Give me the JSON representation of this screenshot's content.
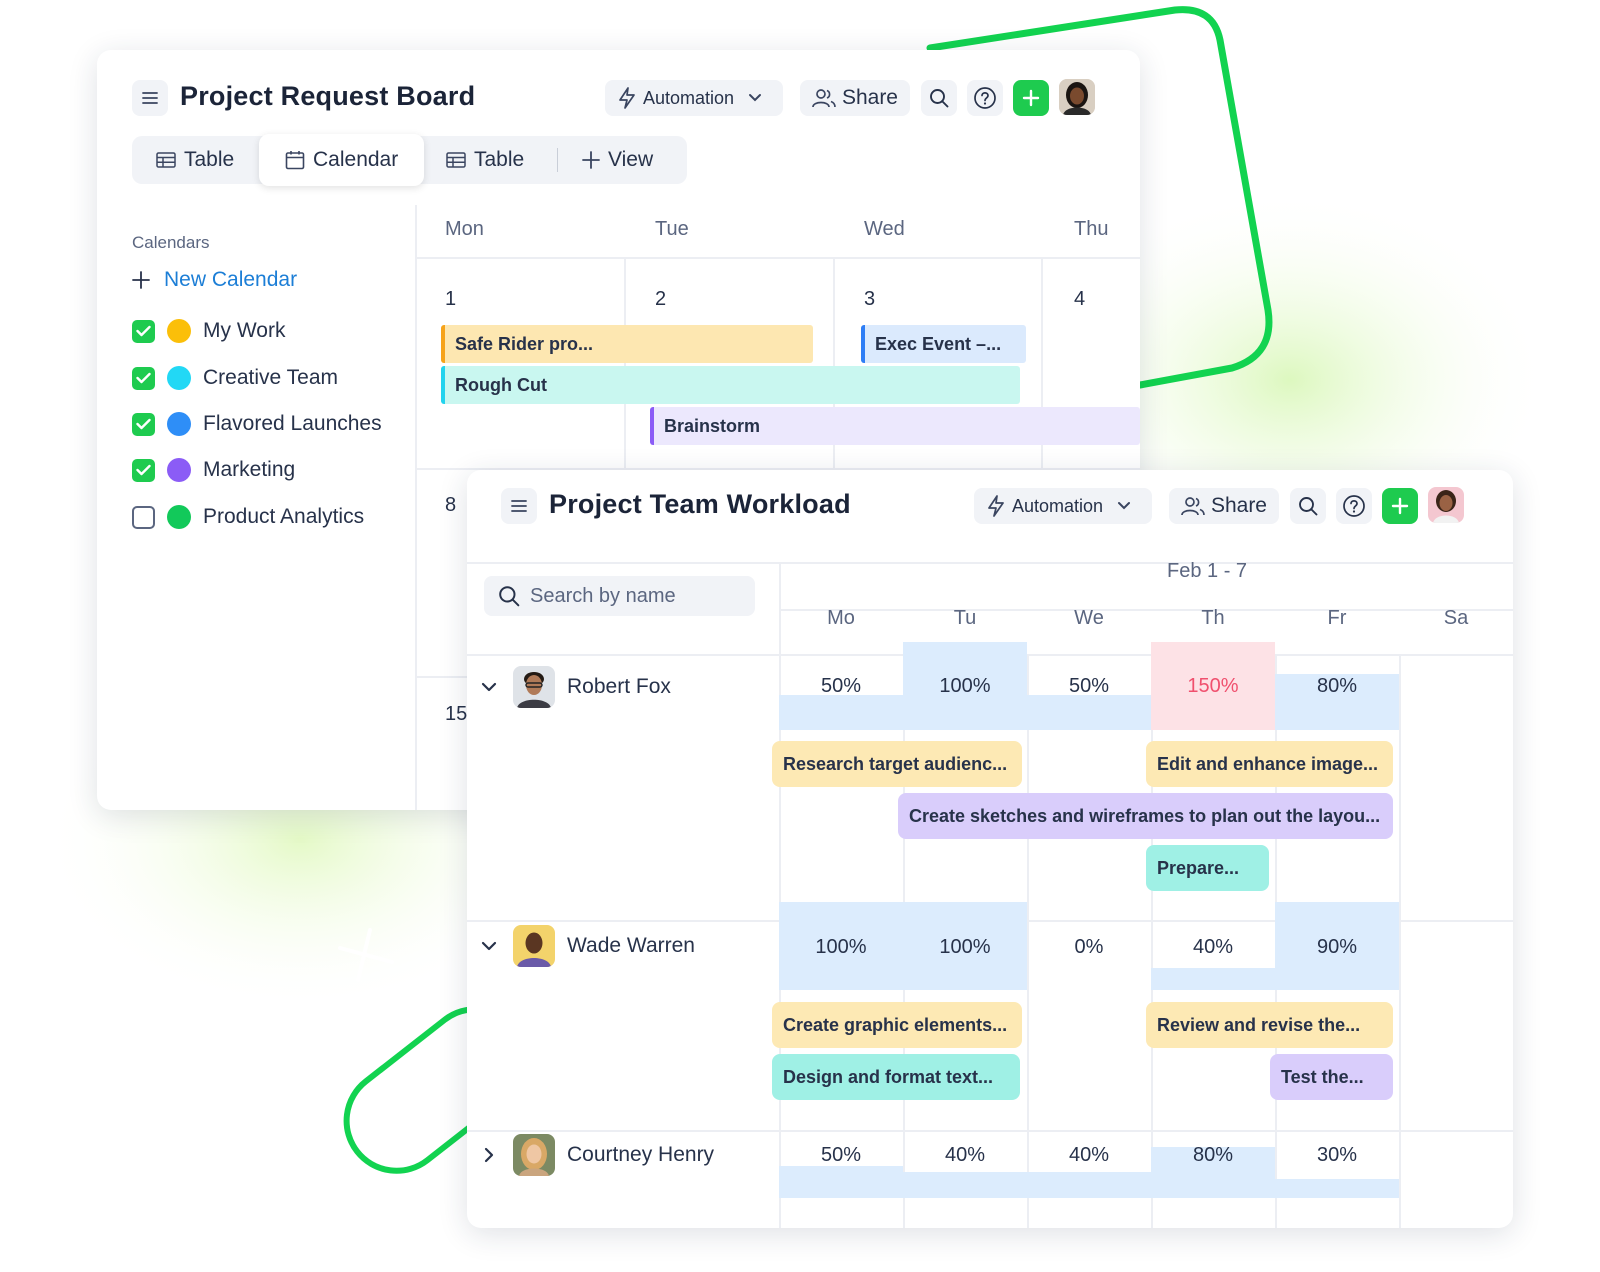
{
  "colors": {
    "accent_green": "#1ecb4f",
    "link_blue": "#1c7ed6",
    "overload_red": "#f0506e",
    "load_blue": "#dcecfd",
    "overload_pink": "#fde2e6"
  },
  "board": {
    "title": "Project Request Board",
    "automation_label": "Automation",
    "share_label": "Share",
    "tabs": [
      {
        "label": "Table",
        "icon": "table-icon"
      },
      {
        "label": "Calendar",
        "icon": "calendar-icon"
      },
      {
        "label": "Table",
        "icon": "table-icon"
      },
      {
        "label": "View",
        "icon": "plus-icon"
      }
    ],
    "sidebar": {
      "heading": "Calendars",
      "new_calendar": "New Calendar",
      "calendars": [
        {
          "label": "My Work",
          "checked": true,
          "color": "#fbbf09"
        },
        {
          "label": "Creative Team",
          "checked": true,
          "color": "#22d8f5"
        },
        {
          "label": "Flavored Launches",
          "checked": true,
          "color": "#2e8ef7"
        },
        {
          "label": "Marketing",
          "checked": true,
          "color": "#8b5cf6"
        },
        {
          "label": "Product Analytics",
          "checked": false,
          "color": "#12c95a"
        }
      ]
    },
    "weekdays": [
      "Mon",
      "Tue",
      "Wed",
      "Thu"
    ],
    "day_numbers": [
      "1",
      "2",
      "3",
      "4",
      "8",
      "15"
    ],
    "events": [
      {
        "label": "Safe Rider pro...",
        "color": "#fde7b1",
        "bar": "#f6a31a"
      },
      {
        "label": "Exec Event –...",
        "color": "#dbeafd",
        "bar": "#2e7ef5"
      },
      {
        "label": "Rough Cut",
        "color": "#c9f7f0",
        "bar": "#22d3ee"
      },
      {
        "label": "Brainstorm",
        "color": "#ece8fd",
        "bar": "#8b5cf6"
      }
    ]
  },
  "workload": {
    "title": "Project Team Workload",
    "automation_label": "Automation",
    "share_label": "Share",
    "search_placeholder": "Search by name",
    "date_range": "Feb 1 - 7",
    "weekdays": [
      "Mo",
      "Tu",
      "We",
      "Th",
      "Fr",
      "Sa"
    ],
    "people": [
      {
        "name": "Robert Fox",
        "expanded": true,
        "loads": [
          "50%",
          "100%",
          "50%",
          "150%",
          "80%"
        ],
        "load_values": [
          50,
          100,
          50,
          150,
          80
        ],
        "tasks": [
          {
            "label": "Research target audienc...",
            "color": "#fde9b4"
          },
          {
            "label": "Edit and enhance image...",
            "color": "#fde9b4"
          },
          {
            "label": "Create sketches and wireframes to plan out the layou...",
            "color": "#d9cdfb"
          },
          {
            "label": "Prepare...",
            "color": "#9ff0e5"
          }
        ]
      },
      {
        "name": "Wade Warren",
        "expanded": true,
        "loads": [
          "100%",
          "100%",
          "0%",
          "40%",
          "90%"
        ],
        "load_values": [
          100,
          100,
          0,
          40,
          90
        ],
        "tasks": [
          {
            "label": "Create graphic elements...",
            "color": "#fde9b4"
          },
          {
            "label": "Review and revise the...",
            "color": "#fde9b4"
          },
          {
            "label": "Design and format text...",
            "color": "#9ff0e5"
          },
          {
            "label": "Test the...",
            "color": "#d9cdfb"
          }
        ]
      },
      {
        "name": "Courtney Henry",
        "expanded": false,
        "loads": [
          "50%",
          "40%",
          "40%",
          "80%",
          "30%"
        ],
        "load_values": [
          50,
          40,
          40,
          80,
          30
        ],
        "tasks": []
      }
    ]
  }
}
